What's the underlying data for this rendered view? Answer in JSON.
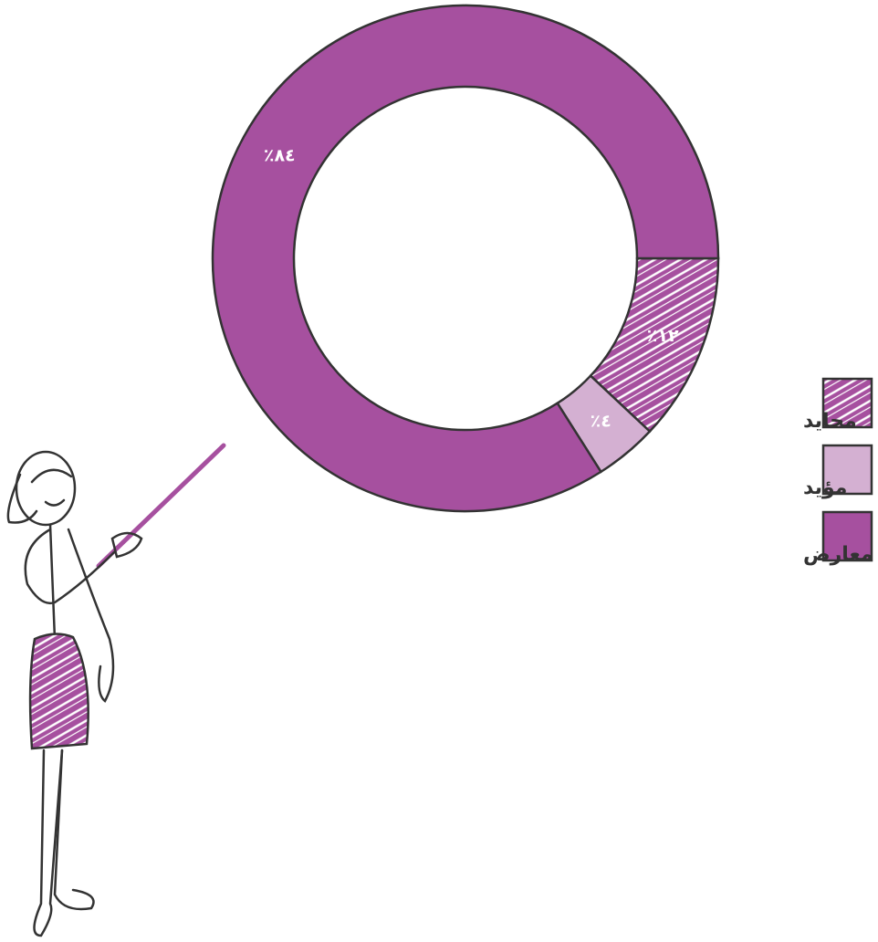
{
  "chart_data": {
    "type": "pie",
    "donut": true,
    "categories": [
      "محايد",
      "مؤيد",
      "معارض"
    ],
    "values": [
      12,
      4,
      84
    ],
    "value_labels": [
      "٪١٢",
      "٪٤",
      "٪٨٤"
    ],
    "colors": [
      "hatch",
      "#d4b0d2",
      "#a6509f"
    ],
    "legend": "right"
  }
}
